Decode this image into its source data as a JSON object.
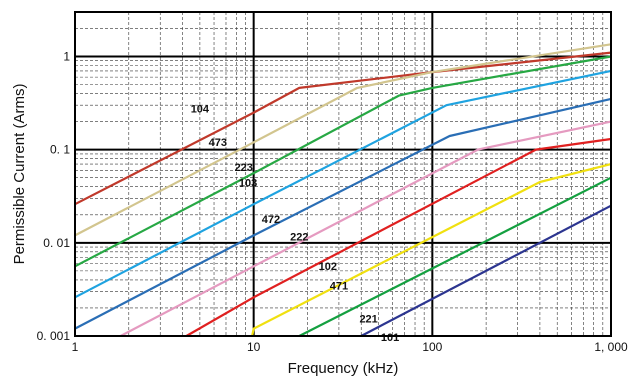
{
  "chart_data": {
    "type": "line",
    "title": "",
    "xlabel": "Frequency (kHz)",
    "ylabel": "Permissible Current (Arms)",
    "x_scale": "log",
    "y_scale": "log",
    "xlim": [
      1,
      1000
    ],
    "ylim": [
      0.001,
      3
    ],
    "grid": true,
    "legend": "inline labels",
    "x_ticks": [
      {
        "value": 1,
        "label": "1"
      },
      {
        "value": 10,
        "label": "10"
      },
      {
        "value": 100,
        "label": "100"
      },
      {
        "value": 1000,
        "label": "1, 000"
      }
    ],
    "y_ticks": [
      {
        "value": 0.001,
        "label": "0. 001"
      },
      {
        "value": 0.01,
        "label": "0. 01"
      },
      {
        "value": 0.1,
        "label": "0. 1"
      },
      {
        "value": 1,
        "label": "1"
      }
    ],
    "series": [
      {
        "name": "104",
        "color": "#c0392b",
        "label_at": [
          5.0,
          0.27
        ],
        "points": [
          [
            1,
            0.026
          ],
          [
            10,
            0.25
          ],
          [
            18,
            0.46
          ],
          [
            100,
            0.68
          ],
          [
            1000,
            1.1
          ]
        ]
      },
      {
        "name": "473",
        "color": "#d2c58e",
        "label_at": [
          6.3,
          0.117
        ],
        "points": [
          [
            1,
            0.012
          ],
          [
            10,
            0.12
          ],
          [
            38,
            0.46
          ],
          [
            100,
            0.68
          ],
          [
            1000,
            1.35
          ]
        ]
      },
      {
        "name": "223",
        "color": "#27a844",
        "label_at": [
          8.8,
          0.063
        ],
        "points": [
          [
            1,
            0.0056
          ],
          [
            10,
            0.056
          ],
          [
            65,
            0.38
          ],
          [
            100,
            0.46
          ],
          [
            1000,
            1.0
          ]
        ]
      },
      {
        "name": "103",
        "color": "#1fa3e0",
        "label_at": [
          9.3,
          0.043
        ],
        "points": [
          [
            1,
            0.0026
          ],
          [
            10,
            0.026
          ],
          [
            120,
            0.3
          ],
          [
            1000,
            0.7
          ]
        ]
      },
      {
        "name": "472",
        "color": "#2a6eb5",
        "label_at": [
          12.5,
          0.0175
        ],
        "points": [
          [
            1,
            0.0012
          ],
          [
            10,
            0.012
          ],
          [
            125,
            0.14
          ],
          [
            1000,
            0.35
          ]
        ]
      },
      {
        "name": "222",
        "color": "#e59ac0",
        "label_at": [
          18,
          0.0114
        ],
        "points": [
          [
            1.8,
            0.001
          ],
          [
            10,
            0.0056
          ],
          [
            180,
            0.1
          ],
          [
            1000,
            0.2
          ]
        ]
      },
      {
        "name": "102",
        "color": "#e02020",
        "label_at": [
          26,
          0.0055
        ],
        "points": [
          [
            4.2,
            0.001
          ],
          [
            10,
            0.0026
          ],
          [
            380,
            0.1
          ],
          [
            1000,
            0.13
          ]
        ]
      },
      {
        "name": "471",
        "color": "#f0e010",
        "label_at": [
          30,
          0.0034
        ],
        "points": [
          [
            9.8,
            0.001
          ],
          [
            10,
            0.0012
          ],
          [
            400,
            0.045
          ],
          [
            1000,
            0.07
          ]
        ]
      },
      {
        "name": "221",
        "color": "#14a040",
        "label_at": [
          44,
          0.0015
        ],
        "points": [
          [
            18,
            0.001
          ],
          [
            1000,
            0.05
          ]
        ]
      },
      {
        "name": "101",
        "color": "#2c3590",
        "label_at": [
          58,
          0.00095
        ],
        "points": [
          [
            40,
            0.001
          ],
          [
            1000,
            0.025
          ]
        ]
      }
    ]
  }
}
